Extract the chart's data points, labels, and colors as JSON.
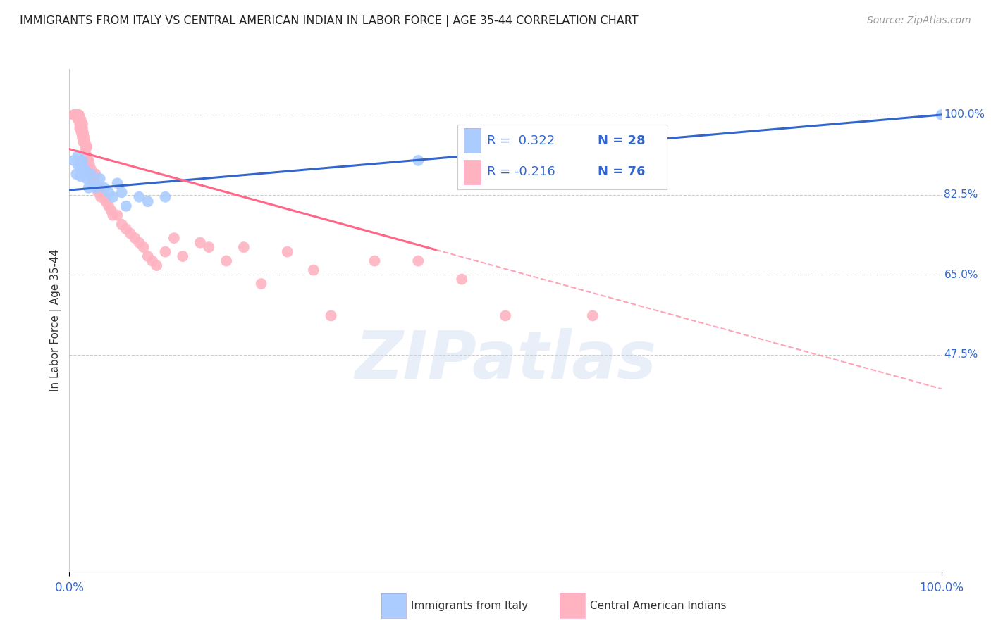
{
  "title": "IMMIGRANTS FROM ITALY VS CENTRAL AMERICAN INDIAN IN LABOR FORCE | AGE 35-44 CORRELATION CHART",
  "source": "Source: ZipAtlas.com",
  "ylabel": "In Labor Force | Age 35-44",
  "xlim": [
    0.0,
    1.0
  ],
  "ylim": [
    0.0,
    1.1
  ],
  "ytick_values": [
    0.475,
    0.65,
    0.825,
    1.0
  ],
  "ytick_labels": [
    "47.5%",
    "65.0%",
    "82.5%",
    "100.0%"
  ],
  "xtick_labels": [
    "0.0%",
    "100.0%"
  ],
  "xtick_values": [
    0.0,
    1.0
  ],
  "legend_italy_r": "R =  0.322",
  "legend_italy_n": "N = 28",
  "legend_ca_r": "R = -0.216",
  "legend_ca_n": "N = 76",
  "color_italy": "#AACCFF",
  "color_ca": "#FFB3C1",
  "color_italy_line": "#3366CC",
  "color_ca_line": "#FF6688",
  "background_color": "#FFFFFF",
  "grid_color": "#CCCCCC",
  "italy_x": [
    0.005,
    0.008,
    0.01,
    0.01,
    0.012,
    0.013,
    0.013,
    0.015,
    0.015,
    0.016,
    0.018,
    0.02,
    0.022,
    0.025,
    0.028,
    0.03,
    0.035,
    0.04,
    0.045,
    0.05,
    0.055,
    0.06,
    0.065,
    0.08,
    0.09,
    0.11,
    0.4,
    1.0
  ],
  "italy_y": [
    0.9,
    0.87,
    0.91,
    0.89,
    0.895,
    0.88,
    0.865,
    0.9,
    0.885,
    0.87,
    0.88,
    0.86,
    0.84,
    0.87,
    0.845,
    0.84,
    0.86,
    0.84,
    0.83,
    0.82,
    0.85,
    0.83,
    0.8,
    0.82,
    0.81,
    0.82,
    0.9,
    1.0
  ],
  "ca_x": [
    0.005,
    0.006,
    0.007,
    0.008,
    0.008,
    0.009,
    0.009,
    0.01,
    0.01,
    0.01,
    0.011,
    0.011,
    0.012,
    0.012,
    0.013,
    0.013,
    0.014,
    0.014,
    0.015,
    0.015,
    0.015,
    0.016,
    0.016,
    0.017,
    0.018,
    0.018,
    0.019,
    0.02,
    0.02,
    0.021,
    0.022,
    0.022,
    0.023,
    0.024,
    0.025,
    0.026,
    0.027,
    0.028,
    0.03,
    0.03,
    0.032,
    0.033,
    0.035,
    0.036,
    0.038,
    0.04,
    0.042,
    0.045,
    0.048,
    0.05,
    0.055,
    0.06,
    0.065,
    0.07,
    0.075,
    0.08,
    0.085,
    0.09,
    0.095,
    0.1,
    0.11,
    0.12,
    0.13,
    0.15,
    0.16,
    0.18,
    0.2,
    0.22,
    0.25,
    0.28,
    0.3,
    0.35,
    0.4,
    0.45,
    0.5,
    0.6
  ],
  "ca_y": [
    1.0,
    1.0,
    1.0,
    1.0,
    1.0,
    1.0,
    1.0,
    1.0,
    1.0,
    0.99,
    1.0,
    0.99,
    0.98,
    0.97,
    0.99,
    0.98,
    0.97,
    0.96,
    0.98,
    0.97,
    0.95,
    0.96,
    0.94,
    0.95,
    0.94,
    0.92,
    0.93,
    0.93,
    0.91,
    0.9,
    0.9,
    0.88,
    0.89,
    0.87,
    0.88,
    0.86,
    0.87,
    0.86,
    0.87,
    0.85,
    0.84,
    0.83,
    0.84,
    0.82,
    0.83,
    0.82,
    0.81,
    0.8,
    0.79,
    0.78,
    0.78,
    0.76,
    0.75,
    0.74,
    0.73,
    0.72,
    0.71,
    0.69,
    0.68,
    0.67,
    0.7,
    0.73,
    0.69,
    0.72,
    0.71,
    0.68,
    0.71,
    0.63,
    0.7,
    0.66,
    0.56,
    0.68,
    0.68,
    0.64,
    0.56,
    0.56
  ],
  "italy_line_x0": 0.0,
  "italy_line_y0": 0.835,
  "italy_line_x1": 1.0,
  "italy_line_y1": 1.0,
  "ca_line_x0": 0.0,
  "ca_line_y0": 0.925,
  "ca_line_solid_end": 0.42,
  "ca_line_x1": 1.0,
  "ca_line_y1": 0.4,
  "watermark_text": "ZIPatlas"
}
